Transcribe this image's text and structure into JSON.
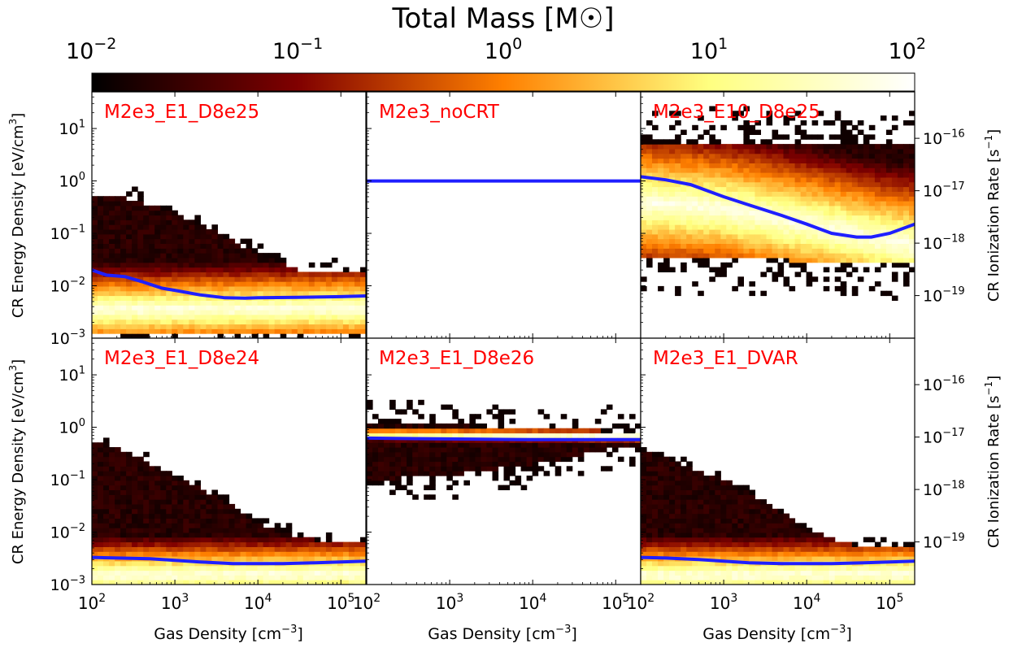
{
  "colorbar": {
    "title": "Total Mass [M☉]",
    "scale": "log",
    "range": [
      0.01,
      100
    ],
    "ticks": [
      {
        "value": 0.01,
        "base": "10",
        "exp": "−2"
      },
      {
        "value": 0.1,
        "base": "10",
        "exp": "−1"
      },
      {
        "value": 1,
        "base": "10",
        "exp": "0"
      },
      {
        "value": 10,
        "base": "10",
        "exp": "1"
      },
      {
        "value": 100,
        "base": "10",
        "exp": "2"
      }
    ],
    "colormap": "afmhot"
  },
  "axes": {
    "xlabel": "Gas Density [cm",
    "xlabel_exp": "−3",
    "xlabel_end": "]",
    "ylabel_left": "CR Energy Density [eV/cm",
    "ylabel_left_exp": "3",
    "ylabel_left_end": "]",
    "ylabel_right": "CR Ionization Rate [s",
    "ylabel_right_exp": "−1",
    "ylabel_right_end": "]",
    "xlim": [
      100,
      200000
    ],
    "ylim": [
      0.001,
      50
    ],
    "xticks": [
      {
        "value": 100,
        "base": "10",
        "exp": "2"
      },
      {
        "value": 1000,
        "base": "10",
        "exp": "3"
      },
      {
        "value": 10000,
        "base": "10",
        "exp": "4"
      },
      {
        "value": 100000,
        "base": "10",
        "exp": "5"
      }
    ],
    "yticks_left": [
      {
        "value": 0.001,
        "base": "10",
        "exp": "−3"
      },
      {
        "value": 0.01,
        "base": "10",
        "exp": "−2"
      },
      {
        "value": 0.1,
        "base": "10",
        "exp": "−1"
      },
      {
        "value": 1,
        "base": "10",
        "exp": "0"
      },
      {
        "value": 10,
        "base": "10",
        "exp": "1"
      }
    ],
    "yticks_right": [
      {
        "value": 1e-19,
        "base": "10",
        "exp": "−19"
      },
      {
        "value": 1e-18,
        "base": "10",
        "exp": "−18"
      },
      {
        "value": 1e-17,
        "base": "10",
        "exp": "−17"
      },
      {
        "value": 1e-16,
        "base": "10",
        "exp": "−16"
      }
    ],
    "energy_per_ionization_rate": 6.5e+16
  },
  "chart_data": [
    {
      "type": "heatmap",
      "title": "M2e3_E1_D8e25",
      "grid": {
        "row": 0,
        "col": 0
      },
      "x_scale": "log",
      "y_scale": "log",
      "median_line": {
        "x": [
          100,
          150,
          250,
          400,
          700,
          1000,
          2000,
          4000,
          7000,
          10000,
          30000,
          100000,
          200000
        ],
        "y": [
          0.02,
          0.016,
          0.015,
          0.012,
          0.009,
          0.0082,
          0.0067,
          0.0059,
          0.0058,
          0.0059,
          0.006,
          0.0062,
          0.0064
        ]
      },
      "distribution": {
        "upper_edge": {
          "x": [
            100,
            150,
            300,
            1000,
            3000,
            10000,
            30000,
            100000,
            200000
          ],
          "y": [
            0.5,
            0.5,
            0.45,
            0.25,
            0.11,
            0.04,
            0.02,
            0.018,
            0.018
          ]
        },
        "lower_edge": {
          "x": [
            100,
            200000
          ],
          "y": [
            0.0012,
            0.0012
          ]
        },
        "peak": {
          "x": [
            100,
            200000
          ],
          "y": [
            0.0035,
            0.0038
          ]
        },
        "spread_dex": 0.35,
        "tail_dex": 0.25
      }
    },
    {
      "type": "heatmap",
      "title": "M2e3_noCRT",
      "grid": {
        "row": 0,
        "col": 1
      },
      "x_scale": "log",
      "y_scale": "log",
      "median_line": {
        "x": [
          100,
          200000
        ],
        "y": [
          1.0,
          1.0
        ]
      },
      "distribution": null
    },
    {
      "type": "heatmap",
      "title": "M2e3_E10_D8e25",
      "grid": {
        "row": 0,
        "col": 2
      },
      "x_scale": "log",
      "y_scale": "log",
      "median_line": {
        "x": [
          100,
          200,
          400,
          1000,
          2000,
          5000,
          10000,
          20000,
          40000,
          60000,
          100000,
          200000
        ],
        "y": [
          1.2,
          1.05,
          0.85,
          0.5,
          0.35,
          0.22,
          0.15,
          0.1,
          0.085,
          0.085,
          0.1,
          0.15
        ]
      },
      "distribution": {
        "upper_edge": {
          "x": [
            100,
            1000,
            10000,
            100000,
            200000
          ],
          "y": [
            5,
            5,
            5,
            5,
            5
          ]
        },
        "lower_edge": {
          "x": [
            100,
            1000,
            10000,
            100000,
            200000
          ],
          "y": [
            0.035,
            0.035,
            0.03,
            0.028,
            0.03
          ]
        },
        "peak": {
          "x": [
            100,
            1000,
            10000,
            100000,
            200000
          ],
          "y": [
            0.4,
            0.3,
            0.15,
            0.07,
            0.06
          ]
        },
        "spread_dex": 0.6,
        "tail_dex": 0.8
      }
    },
    {
      "type": "heatmap",
      "title": "M2e3_E1_D8e24",
      "grid": {
        "row": 1,
        "col": 0
      },
      "x_scale": "log",
      "y_scale": "log",
      "median_line": {
        "x": [
          100,
          200,
          500,
          1000,
          2000,
          5000,
          10000,
          20000,
          50000,
          100000,
          200000
        ],
        "y": [
          0.0033,
          0.0032,
          0.0031,
          0.0029,
          0.0027,
          0.0025,
          0.0025,
          0.0025,
          0.0026,
          0.0027,
          0.0028
        ]
      },
      "distribution": {
        "upper_edge": {
          "x": [
            100,
            150,
            300,
            1000,
            3000,
            10000,
            30000,
            100000,
            200000
          ],
          "y": [
            0.55,
            0.5,
            0.3,
            0.12,
            0.05,
            0.015,
            0.008,
            0.006,
            0.006
          ]
        },
        "lower_edge": {
          "x": [
            100,
            200000
          ],
          "y": [
            0.001,
            0.001
          ]
        },
        "peak": {
          "x": [
            100,
            200000
          ],
          "y": [
            0.0015,
            0.0016
          ]
        },
        "spread_dex": 0.3,
        "tail_dex": 0.2
      }
    },
    {
      "type": "heatmap",
      "title": "M2e3_E1_D8e26",
      "grid": {
        "row": 1,
        "col": 1
      },
      "x_scale": "log",
      "y_scale": "log",
      "median_line": {
        "x": [
          100,
          1000,
          10000,
          200000
        ],
        "y": [
          0.62,
          0.6,
          0.58,
          0.58
        ]
      },
      "distribution": {
        "upper_edge": {
          "x": [
            100,
            1000,
            10000,
            100000,
            200000
          ],
          "y": [
            1.2,
            1.1,
            0.95,
            0.85,
            0.8
          ]
        },
        "lower_edge": {
          "x": [
            100,
            1000,
            10000,
            100000,
            200000
          ],
          "y": [
            0.1,
            0.12,
            0.2,
            0.4,
            0.45
          ]
        },
        "peak": {
          "x": [
            100,
            200000
          ],
          "y": [
            0.75,
            0.7
          ]
        },
        "spread_dex": 0.05,
        "tail_dex": 0.5
      }
    },
    {
      "type": "heatmap",
      "title": "M2e3_E1_DVAR",
      "grid": {
        "row": 1,
        "col": 2
      },
      "x_scale": "log",
      "y_scale": "log",
      "median_line": {
        "x": [
          100,
          200,
          500,
          1000,
          2000,
          5000,
          10000,
          20000,
          50000,
          100000,
          200000
        ],
        "y": [
          0.0033,
          0.0032,
          0.003,
          0.0028,
          0.0026,
          0.0025,
          0.0025,
          0.0025,
          0.0026,
          0.0027,
          0.0028
        ]
      },
      "distribution": {
        "upper_edge": {
          "x": [
            100,
            150,
            300,
            1000,
            3000,
            10000,
            30000,
            100000,
            200000
          ],
          "y": [
            0.35,
            0.3,
            0.2,
            0.1,
            0.04,
            0.012,
            0.006,
            0.005,
            0.005
          ]
        },
        "lower_edge": {
          "x": [
            100,
            200000
          ],
          "y": [
            0.001,
            0.001
          ]
        },
        "peak": {
          "x": [
            100,
            200000
          ],
          "y": [
            0.0015,
            0.0016
          ]
        },
        "spread_dex": 0.3,
        "tail_dex": 0.2
      }
    }
  ]
}
